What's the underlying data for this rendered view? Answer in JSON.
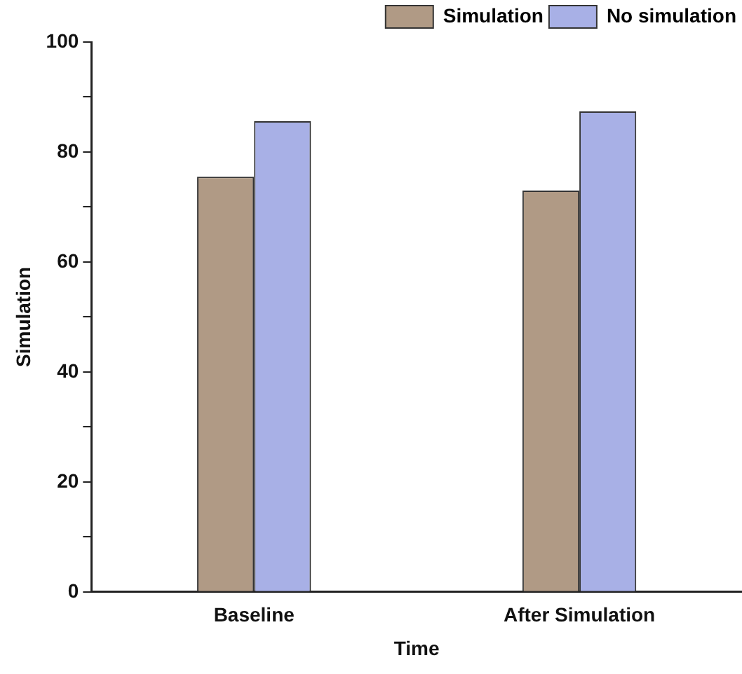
{
  "chart_data": {
    "type": "bar",
    "xlabel": "Time",
    "ylabel": "Simulation",
    "categories": [
      "Baseline",
      "After Simulation"
    ],
    "series": [
      {
        "name": "Simulation",
        "color": "#b09a85",
        "values": [
          75.5,
          73.0
        ]
      },
      {
        "name": "No simulation",
        "color": "#a8b0e6",
        "values": [
          85.6,
          87.4
        ]
      }
    ],
    "ylim": [
      0,
      100
    ],
    "yticks": [
      0,
      {
        "value": 10,
        "label": null
      },
      20,
      {
        "value": 30,
        "label": null
      },
      40,
      {
        "value": 50,
        "label": null
      },
      60,
      {
        "value": 70,
        "label": null
      },
      80,
      {
        "value": 90,
        "label": null
      },
      100
    ],
    "grid": false,
    "legend": "top right"
  }
}
